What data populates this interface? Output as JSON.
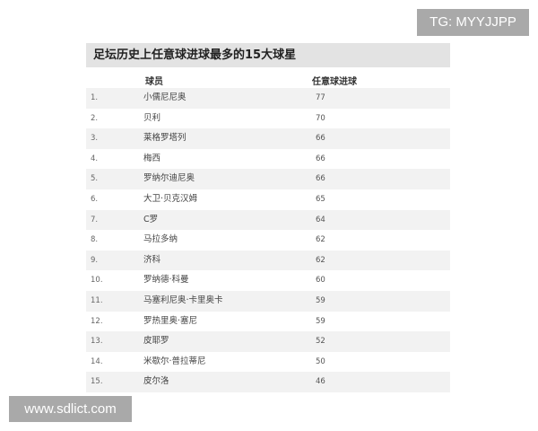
{
  "watermarks": {
    "tg": "TG: MYYJJPP",
    "site": "www.sdlict.com"
  },
  "table": {
    "title": "足坛历史上任意球进球最多的15大球星",
    "headers": [
      "球员",
      "任意球进球"
    ],
    "rows": [
      {
        "rank": "1.",
        "player": "小儒尼尼奥",
        "goals": "77"
      },
      {
        "rank": "2.",
        "player": "贝利",
        "goals": "70"
      },
      {
        "rank": "3.",
        "player": "莱格罗塔列",
        "goals": "66"
      },
      {
        "rank": "4.",
        "player": "梅西",
        "goals": "66"
      },
      {
        "rank": "5.",
        "player": "罗纳尔迪尼奥",
        "goals": "66"
      },
      {
        "rank": "6.",
        "player": "大卫·贝克汉姆",
        "goals": "65"
      },
      {
        "rank": "7.",
        "player": "C罗",
        "goals": "64"
      },
      {
        "rank": "8.",
        "player": "马拉多纳",
        "goals": "62"
      },
      {
        "rank": "9.",
        "player": "济科",
        "goals": "62"
      },
      {
        "rank": "10.",
        "player": "罗纳德·科曼",
        "goals": "60"
      },
      {
        "rank": "11.",
        "player": "马塞利尼奥·卡里奥卡",
        "goals": "59"
      },
      {
        "rank": "12.",
        "player": "罗热里奥·塞尼",
        "goals": "59"
      },
      {
        "rank": "13.",
        "player": "皮耶罗",
        "goals": "52"
      },
      {
        "rank": "14.",
        "player": "米歇尔·普拉蒂尼",
        "goals": "50"
      },
      {
        "rank": "15.",
        "player": "皮尔洛",
        "goals": "46"
      }
    ]
  }
}
